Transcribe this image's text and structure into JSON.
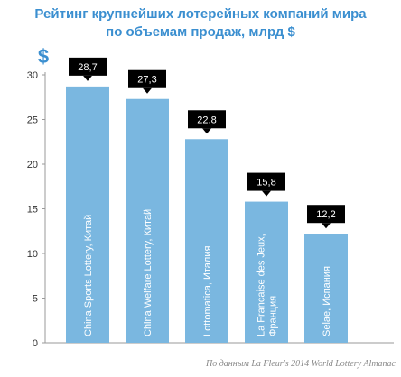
{
  "title_line1": "Рейтинг крупнейших лотерейных компаний мира",
  "title_line2": "по объемам продаж, млрд $",
  "source": "По данным La Fleur's 2014 World Lottery Almanac",
  "chart_data": {
    "type": "bar",
    "unit_label": "$",
    "categories": [
      [
        "China Sports Lottery, Китай"
      ],
      [
        "China Welfare Lottery, Китай"
      ],
      [
        "Lottomatica, Италия"
      ],
      [
        "La Francaise des Jeux,",
        "Франция"
      ],
      [
        "Selae, Испания"
      ]
    ],
    "values": [
      28.7,
      27.3,
      22.8,
      15.8,
      12.2
    ],
    "value_labels": [
      "28,7",
      "27,3",
      "22,8",
      "15,8",
      "12,2"
    ],
    "y_ticks": [
      0,
      5,
      10,
      15,
      20,
      25,
      30
    ],
    "ylim": [
      0,
      30
    ],
    "bar_color": "#7ab7e0",
    "label_box_color": "#000000",
    "axis_color": "#9a9a9a",
    "title_color": "#3b8fd0"
  }
}
